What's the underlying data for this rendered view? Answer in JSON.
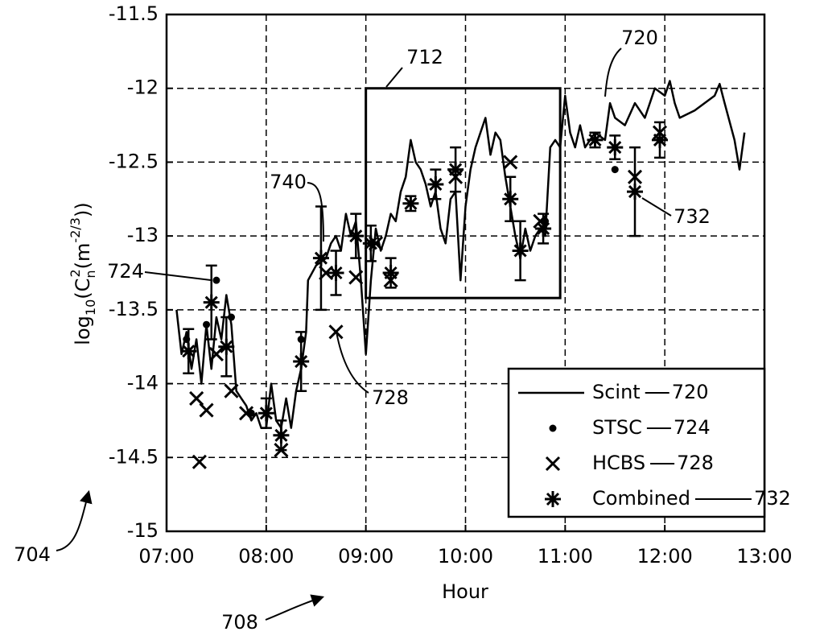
{
  "chart_data": {
    "type": "line",
    "x_label": "Hour",
    "y_label": [
      "log",
      "10",
      "(C",
      "n",
      "2",
      "(m",
      "-2/3",
      "))"
    ],
    "xlim": [
      7,
      13
    ],
    "xticks": [
      {
        "value": 7,
        "label": "07:00"
      },
      {
        "value": 8,
        "label": "08:00"
      },
      {
        "value": 9,
        "label": "09:00"
      },
      {
        "value": 10,
        "label": "10:00"
      },
      {
        "value": 11,
        "label": "11:00"
      },
      {
        "value": 12,
        "label": "12:00"
      },
      {
        "value": 13,
        "label": "13:00"
      }
    ],
    "ylim": [
      -15,
      -11.5
    ],
    "yticks": [
      -11.5,
      -12,
      -12.5,
      -13,
      -13.5,
      -14,
      -14.5,
      -15
    ],
    "grid": true,
    "legend": "lower right",
    "color": "#000000",
    "series": [
      {
        "name": "Scint",
        "ref": "720",
        "kind": "line",
        "x": [
          7.1,
          7.15,
          7.2,
          7.25,
          7.3,
          7.35,
          7.4,
          7.45,
          7.5,
          7.55,
          7.6,
          7.65,
          7.7,
          7.75,
          7.8,
          7.85,
          7.9,
          7.95,
          8.0,
          8.05,
          8.1,
          8.15,
          8.2,
          8.25,
          8.3,
          8.35,
          8.4,
          8.42,
          8.5,
          8.6,
          8.65,
          8.7,
          8.75,
          8.8,
          8.85,
          8.9,
          8.95,
          9.0,
          9.05,
          9.1,
          9.15,
          9.2,
          9.25,
          9.3,
          9.35,
          9.4,
          9.45,
          9.5,
          9.55,
          9.6,
          9.65,
          9.7,
          9.75,
          9.8,
          9.85,
          9.9,
          9.95,
          10.0,
          10.05,
          10.1,
          10.15,
          10.2,
          10.25,
          10.3,
          10.35,
          10.4,
          10.45,
          10.5,
          10.55,
          10.6,
          10.65,
          10.7,
          10.75,
          10.8,
          10.85,
          10.9,
          10.95,
          11.0,
          11.05,
          11.1,
          11.15,
          11.2,
          11.3,
          11.4,
          11.45,
          11.5,
          11.6,
          11.7,
          11.8,
          11.9,
          12.0,
          12.05,
          12.1,
          12.15,
          12.3,
          12.5,
          12.55,
          12.6,
          12.7,
          12.75,
          12.8
        ],
        "values": [
          -13.5,
          -13.8,
          -13.65,
          -13.9,
          -13.7,
          -14.0,
          -13.6,
          -13.9,
          -13.55,
          -13.7,
          -13.4,
          -13.6,
          -14.05,
          -14.1,
          -14.15,
          -14.25,
          -14.2,
          -14.3,
          -14.3,
          -14.0,
          -14.25,
          -14.3,
          -14.1,
          -14.3,
          -14.05,
          -13.9,
          -13.65,
          -13.3,
          -13.2,
          -13.15,
          -13.05,
          -13.0,
          -13.1,
          -12.85,
          -13.0,
          -12.9,
          -13.3,
          -13.8,
          -13.3,
          -12.95,
          -13.1,
          -13.0,
          -12.85,
          -12.9,
          -12.7,
          -12.6,
          -12.35,
          -12.5,
          -12.55,
          -12.65,
          -12.8,
          -12.7,
          -12.95,
          -13.05,
          -12.75,
          -12.7,
          -13.3,
          -12.8,
          -12.55,
          -12.4,
          -12.3,
          -12.2,
          -12.45,
          -12.3,
          -12.35,
          -12.6,
          -12.8,
          -13.0,
          -13.15,
          -12.95,
          -13.1,
          -13.0,
          -12.95,
          -13.0,
          -12.4,
          -12.35,
          -12.4,
          -12.05,
          -12.3,
          -12.4,
          -12.25,
          -12.4,
          -12.3,
          -12.35,
          -12.1,
          -12.2,
          -12.25,
          -12.1,
          -12.2,
          -12.0,
          -12.05,
          -11.95,
          -12.1,
          -12.2,
          -12.15,
          -12.05,
          -11.97,
          -12.1,
          -12.35,
          -12.55,
          -12.3
        ]
      },
      {
        "name": "STSC",
        "ref": "724",
        "kind": "dot",
        "x": [
          7.2,
          7.4,
          7.5,
          7.65,
          7.85,
          8.15,
          8.35,
          10.8,
          11.5,
          11.95
        ],
        "values": [
          -13.7,
          -13.6,
          -13.3,
          -13.55,
          -14.2,
          -14.35,
          -13.7,
          -12.9,
          -12.55,
          -12.35
        ]
      },
      {
        "name": "HCBS",
        "ref": "728",
        "kind": "cross",
        "x": [
          7.3,
          7.33,
          7.4,
          7.5,
          7.65,
          7.8,
          8.15,
          8.6,
          8.7,
          8.9,
          9.1,
          9.25,
          9.9,
          10.45,
          10.75,
          11.7,
          11.95
        ],
        "values": [
          -14.1,
          -14.53,
          -14.18,
          -13.8,
          -14.05,
          -14.2,
          -14.45,
          -13.25,
          -13.65,
          -13.28,
          -13.05,
          -13.3,
          -12.6,
          -12.5,
          -12.9,
          -12.6,
          -12.3
        ]
      },
      {
        "name": "Combined",
        "ref": "732",
        "kind": "asterisk",
        "x": [
          7.22,
          7.45,
          7.6,
          8.0,
          8.15,
          8.35,
          8.55,
          8.7,
          8.9,
          9.05,
          9.25,
          9.45,
          9.7,
          9.9,
          10.45,
          10.55,
          10.78,
          11.3,
          11.5,
          11.7,
          11.95
        ],
        "values": [
          -13.78,
          -13.45,
          -13.75,
          -14.2,
          -14.35,
          -13.85,
          -13.15,
          -13.25,
          -13.0,
          -13.05,
          -13.25,
          -12.78,
          -12.65,
          -12.55,
          -12.75,
          -13.1,
          -12.95,
          -12.35,
          -12.4,
          -12.7,
          -12.35
        ],
        "errors": [
          0.15,
          0.25,
          0.2,
          0.1,
          0.1,
          0.2,
          0.35,
          0.15,
          0.15,
          0.12,
          0.1,
          0.05,
          0.1,
          0.15,
          0.15,
          0.2,
          0.1,
          0.05,
          0.08,
          0.3,
          0.12
        ]
      }
    ],
    "highlight": {
      "label": "712",
      "xlim": [
        9.0,
        10.95
      ],
      "ylim": [
        -13.42,
        -12
      ]
    },
    "annotations": [
      "704",
      "708",
      "720",
      "724",
      "728",
      "732",
      "740"
    ]
  }
}
